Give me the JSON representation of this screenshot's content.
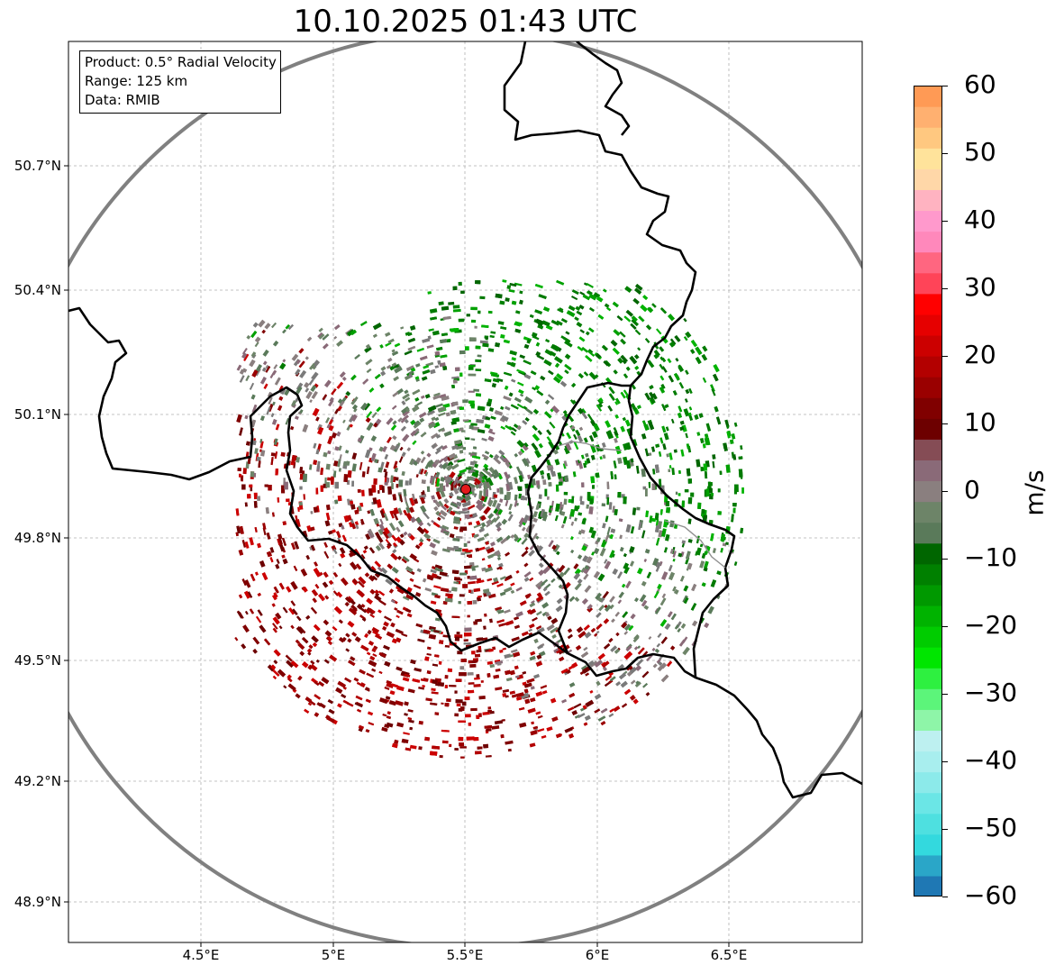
{
  "title": "10.10.2025 01:43 UTC",
  "info_box": {
    "product": "Product: 0.5° Radial Velocity",
    "range": "Range: 125 km",
    "data": "Data: RMIB"
  },
  "axes": {
    "lat_labels": [
      "50.7°N",
      "50.4°N",
      "50.1°N",
      "49.8°N",
      "49.5°N",
      "49.2°N",
      "48.9°N"
    ],
    "lon_labels": [
      "4.5°E",
      "5°E",
      "5.5°E",
      "6°E",
      "6.5°E"
    ]
  },
  "radar_site": {
    "color": "#e31a1c"
  },
  "colorbar": {
    "unit": "m/s",
    "min": -60,
    "max": 60,
    "ticks": [
      "60",
      "50",
      "40",
      "30",
      "20",
      "10",
      "0",
      "−10",
      "−20",
      "−30",
      "−40",
      "−50",
      "−60"
    ],
    "colors": [
      "#1f78b4",
      "#2aa6c8",
      "#33d9de",
      "#4ee0e0",
      "#6be6e6",
      "#8ceaea",
      "#a8eeee",
      "#bdf0f0",
      "#8ef5a8",
      "#5cf57a",
      "#2ef040",
      "#00e600",
      "#00cc00",
      "#00b300",
      "#009900",
      "#008000",
      "#006600",
      "#5a7a5a",
      "#6d8468",
      "#8a7f7f",
      "#8a6a78",
      "#854c55",
      "#6d0000",
      "#800000",
      "#9a0000",
      "#b30000",
      "#cc0000",
      "#e60000",
      "#ff0000",
      "#ff4458",
      "#ff6680",
      "#ff88bb",
      "#ff99cc",
      "#ffb3c1",
      "#ffd7a8",
      "#ffe39b",
      "#ffc880",
      "#ffb070",
      "#ff9a55"
    ]
  }
}
